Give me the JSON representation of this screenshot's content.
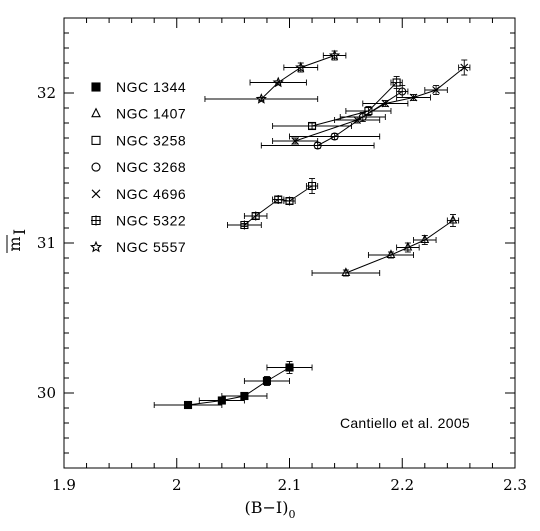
{
  "chart_data": {
    "type": "scatter",
    "xlabel": "(B−I)",
    "xlabel_sub": "0",
    "ylabel": "m",
    "ylabel_sub": "I",
    "xlim": [
      1.9,
      2.3
    ],
    "ylim": [
      29.5,
      32.5
    ],
    "xticks": [
      1.9,
      2.0,
      2.1,
      2.2,
      2.3
    ],
    "xtick_labels": [
      "1.9",
      "2",
      "2.1",
      "2.2",
      "2.3"
    ],
    "yticks": [
      30,
      31,
      32
    ],
    "ytick_labels": [
      "30",
      "31",
      "32"
    ],
    "grid": false,
    "legend_position": "top-left",
    "annotation": "Cantiello et al. 2005",
    "series": [
      {
        "name": "NGC 1344",
        "marker": "filled-square",
        "points": [
          {
            "x": 2.01,
            "y": 29.92,
            "xerr": 0.03,
            "yerr": 0.01
          },
          {
            "x": 2.04,
            "y": 29.95,
            "xerr": 0.02,
            "yerr": 0.01
          },
          {
            "x": 2.06,
            "y": 29.98,
            "xerr": 0.02,
            "yerr": 0.02
          },
          {
            "x": 2.08,
            "y": 30.08,
            "xerr": 0.02,
            "yerr": 0.03
          },
          {
            "x": 2.1,
            "y": 30.17,
            "xerr": 0.02,
            "yerr": 0.04
          }
        ]
      },
      {
        "name": "NGC 1407",
        "marker": "open-triangle",
        "points": [
          {
            "x": 2.15,
            "y": 30.8,
            "xerr": 0.03,
            "yerr": 0.02
          },
          {
            "x": 2.19,
            "y": 30.92,
            "xerr": 0.02,
            "yerr": 0.02
          },
          {
            "x": 2.205,
            "y": 30.97,
            "xerr": 0.01,
            "yerr": 0.03
          },
          {
            "x": 2.22,
            "y": 31.02,
            "xerr": 0.01,
            "yerr": 0.03
          },
          {
            "x": 2.245,
            "y": 31.15,
            "xerr": 0.005,
            "yerr": 0.04
          }
        ]
      },
      {
        "name": "NGC 3258",
        "marker": "open-square",
        "points": [
          {
            "x": 2.12,
            "y": 31.78,
            "xerr": 0.035,
            "yerr": 0.02
          },
          {
            "x": 2.17,
            "y": 31.88,
            "xerr": 0.02,
            "yerr": 0.03
          },
          {
            "x": 2.195,
            "y": 32.07,
            "xerr": 0.005,
            "yerr": 0.04
          }
        ]
      },
      {
        "name": "NGC 3268",
        "marker": "open-circle",
        "points": [
          {
            "x": 2.125,
            "y": 31.65,
            "xerr": 0.05,
            "yerr": 0.02
          },
          {
            "x": 2.14,
            "y": 31.71,
            "xerr": 0.04,
            "yerr": 0.02
          },
          {
            "x": 2.165,
            "y": 31.84,
            "xerr": 0.02,
            "yerr": 0.03
          },
          {
            "x": 2.2,
            "y": 32.01,
            "xerr": 0.005,
            "yerr": 0.04
          }
        ]
      },
      {
        "name": "NGC 4696",
        "marker": "cross",
        "points": [
          {
            "x": 2.105,
            "y": 31.68,
            "xerr": 0.02,
            "yerr": 0.02
          },
          {
            "x": 2.16,
            "y": 31.82,
            "xerr": 0.02,
            "yerr": 0.02
          },
          {
            "x": 2.185,
            "y": 31.93,
            "xerr": 0.02,
            "yerr": 0.02
          },
          {
            "x": 2.21,
            "y": 31.97,
            "xerr": 0.015,
            "yerr": 0.02
          },
          {
            "x": 2.23,
            "y": 32.02,
            "xerr": 0.01,
            "yerr": 0.03
          },
          {
            "x": 2.255,
            "y": 32.17,
            "xerr": 0.005,
            "yerr": 0.05
          }
        ]
      },
      {
        "name": "NGC 5322",
        "marker": "hash-square",
        "points": [
          {
            "x": 2.06,
            "y": 31.12,
            "xerr": 0.015,
            "yerr": 0.01
          },
          {
            "x": 2.07,
            "y": 31.18,
            "xerr": 0.01,
            "yerr": 0.02
          },
          {
            "x": 2.09,
            "y": 31.29,
            "xerr": 0.005,
            "yerr": 0.02
          },
          {
            "x": 2.1,
            "y": 31.28,
            "xerr": 0.005,
            "yerr": 0.02
          },
          {
            "x": 2.12,
            "y": 31.38,
            "xerr": 0.005,
            "yerr": 0.05
          }
        ]
      },
      {
        "name": "NGC 5557",
        "marker": "open-star",
        "points": [
          {
            "x": 2.075,
            "y": 31.96,
            "xerr": 0.05,
            "yerr": 0.01
          },
          {
            "x": 2.09,
            "y": 32.07,
            "xerr": 0.025,
            "yerr": 0.01
          },
          {
            "x": 2.11,
            "y": 32.17,
            "xerr": 0.015,
            "yerr": 0.03
          },
          {
            "x": 2.14,
            "y": 32.25,
            "xerr": 0.01,
            "yerr": 0.03
          }
        ]
      }
    ]
  }
}
